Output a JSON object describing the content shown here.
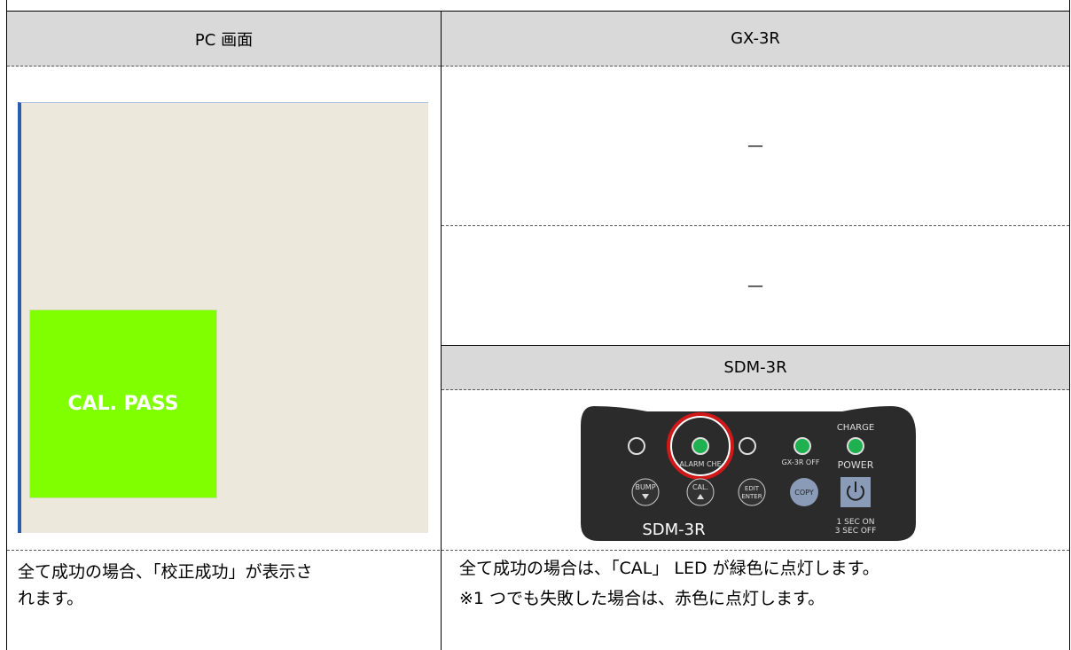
{
  "table": {
    "headers": [
      "PC 画面",
      "GX-3R"
    ],
    "gx3r_rows": [
      "—",
      "—"
    ],
    "sdm_header": "SDM-3R",
    "left_caption": [
      "全て成功の場合、「校正成功」が表示さ",
      "れます。"
    ],
    "right_caption": [
      "全て成功の場合は、「CAL」 LED が緑色に点灯します。",
      "※1 つでも失敗した場合は、赤色に点灯します。"
    ]
  },
  "screen": {
    "status": "CAL. PASS"
  },
  "device": {
    "charge": "CHARGE",
    "alarm": "ALARM CHE",
    "gx_off": "GX-3R OFF",
    "power": "POWER",
    "bump": "BUMP",
    "cal": "CAL.",
    "edit": "EDIT",
    "enter": "ENTER",
    "copy": "COPY",
    "model": "SDM-3R",
    "sec_on": "1 SEC ON",
    "sec_off": "3 SEC OFF"
  }
}
